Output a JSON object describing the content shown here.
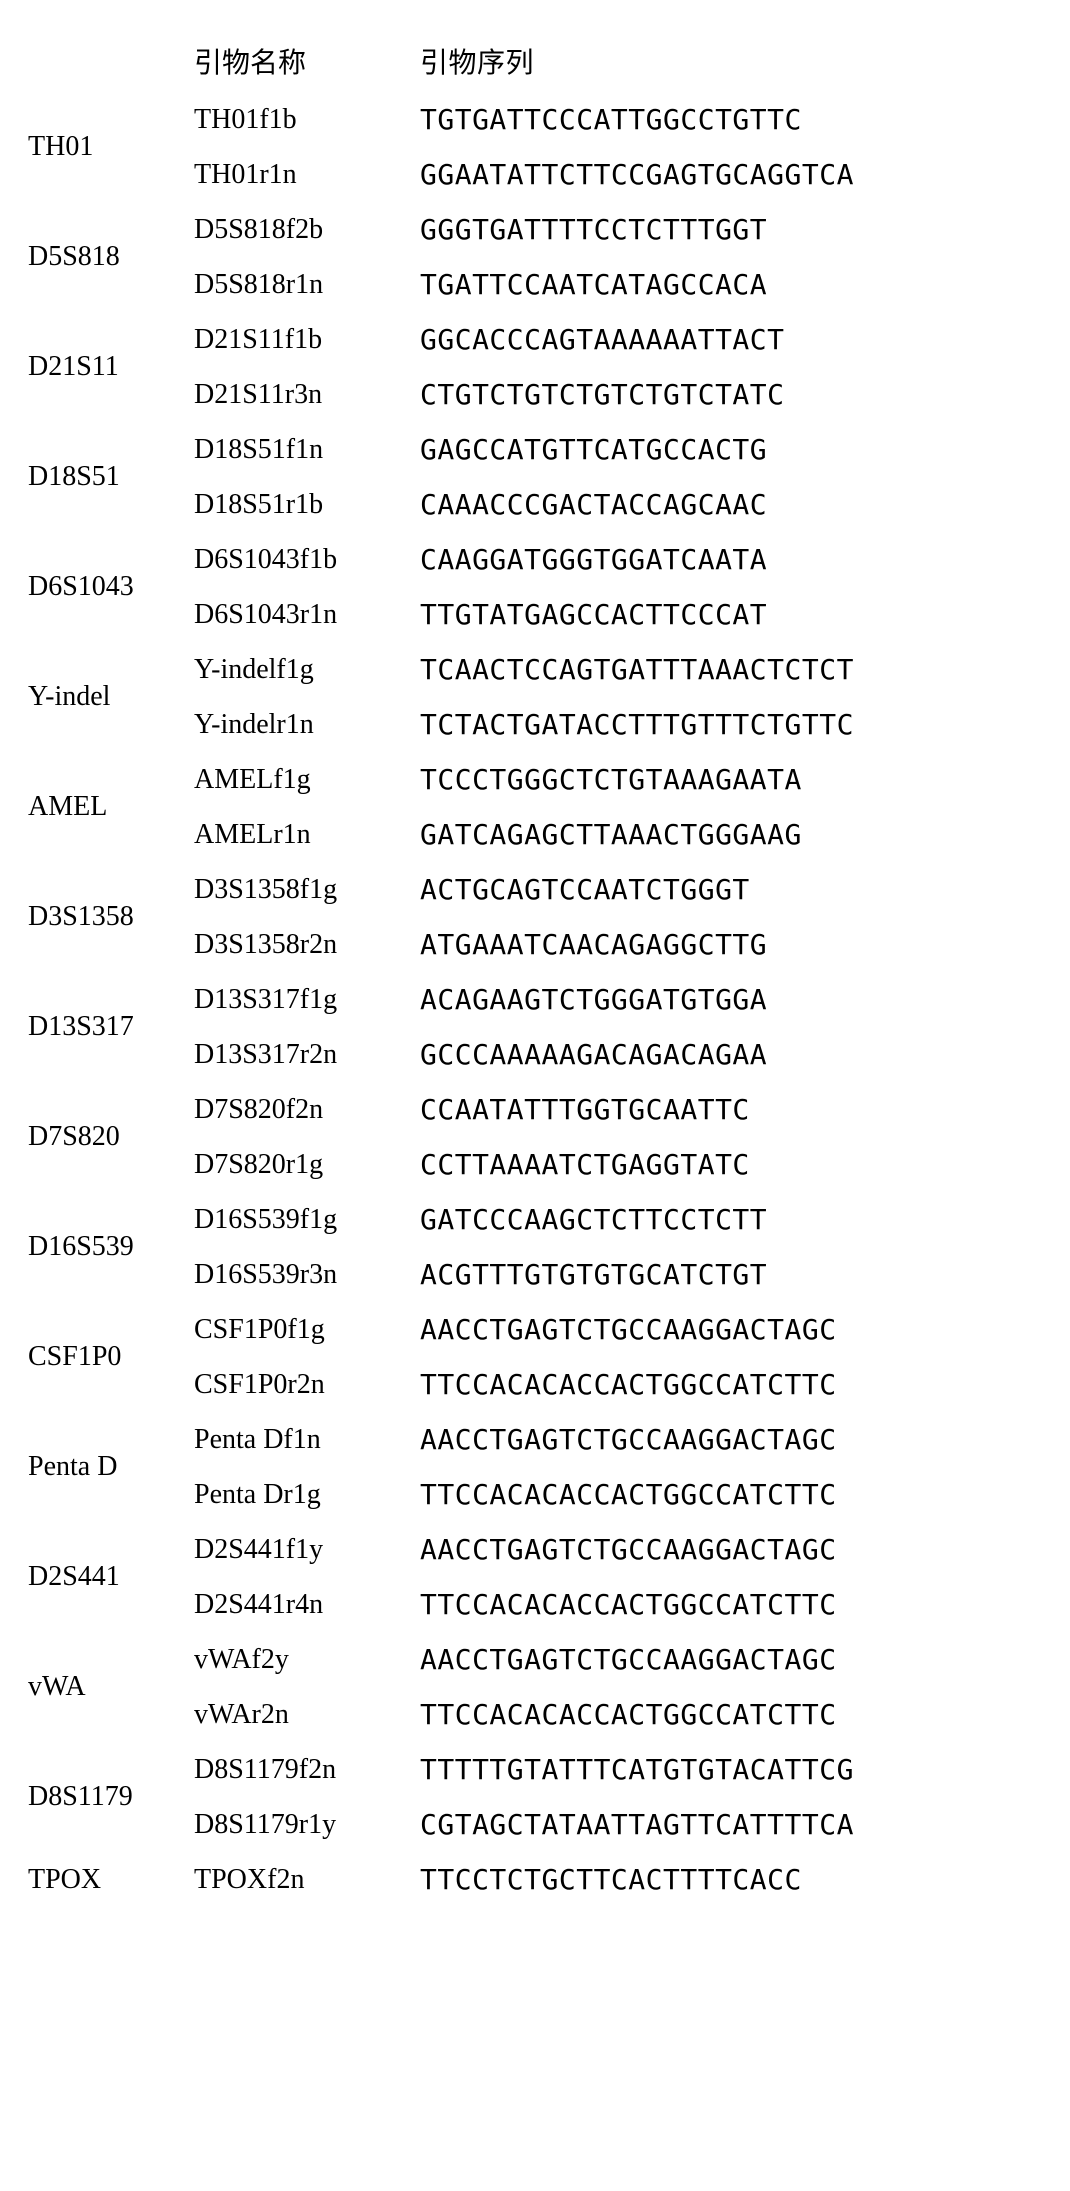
{
  "headers": {
    "locus": "",
    "primer_name": "引物名称",
    "primer_seq": "引物序列"
  },
  "rows": [
    {
      "locus": "TH01",
      "primers": [
        {
          "name": "TH01f1b",
          "seq": "TGTGATTCCCATTGGCCTGTTC"
        },
        {
          "name": "TH01r1n",
          "seq": "GGAATATTCTTCCGAGTGCAGGTCA"
        }
      ]
    },
    {
      "locus": "D5S818",
      "primers": [
        {
          "name": "D5S818f2b",
          "seq": "GGGTGATTTTCCTCTTTGGT"
        },
        {
          "name": "D5S818r1n",
          "seq": "TGATTCCAATCATAGCCACA"
        }
      ]
    },
    {
      "locus": "D21S11",
      "primers": [
        {
          "name": "D21S11f1b",
          "seq": "GGCACCCAGTAAAAAATTACT"
        },
        {
          "name": "D21S11r3n",
          "seq": "CTGTCTGTCTGTCTGTCTATC"
        }
      ]
    },
    {
      "locus": "D18S51",
      "primers": [
        {
          "name": "D18S51f1n",
          "seq": "GAGCCATGTTCATGCCACTG"
        },
        {
          "name": "D18S51r1b",
          "seq": "CAAACCCGACTACCAGCAAC"
        }
      ]
    },
    {
      "locus": "D6S1043",
      "primers": [
        {
          "name": "D6S1043f1b",
          "seq": "CAAGGATGGGTGGATCAATA"
        },
        {
          "name": "D6S1043r1n",
          "seq": "TTGTATGAGCCACTTCCCAT"
        }
      ]
    },
    {
      "locus": "Y-indel",
      "primers": [
        {
          "name": "Y-indelf1g",
          "seq": "TCAACTCCAGTGATTTAAACTCTCT"
        },
        {
          "name": "Y-indelr1n",
          "seq": "TCTACTGATACCTTTGTTTCTGTTC"
        }
      ]
    },
    {
      "locus": "AMEL",
      "primers": [
        {
          "name": "AMELf1g",
          "seq": "TCCCTGGGCTCTGTAAAGAATA"
        },
        {
          "name": "AMELr1n",
          "seq": "GATCAGAGCTTAAACTGGGAAG"
        }
      ]
    },
    {
      "locus": "D3S1358",
      "primers": [
        {
          "name": "D3S1358f1g",
          "seq": "ACTGCAGTCCAATCTGGGT"
        },
        {
          "name": "D3S1358r2n",
          "seq": "ATGAAATCAACAGAGGCTTG"
        }
      ]
    },
    {
      "locus": "D13S317",
      "primers": [
        {
          "name": "D13S317f1g",
          "seq": "ACAGAAGTCTGGGATGTGGA"
        },
        {
          "name": "D13S317r2n",
          "seq": "GCCCAAAAAGACAGACAGAA"
        }
      ]
    },
    {
      "locus": "D7S820",
      "primers": [
        {
          "name": "D7S820f2n",
          "seq": "CCAATATTTGGTGCAATTC"
        },
        {
          "name": "D7S820r1g",
          "seq": "CCTTAAAATCTGAGGTATC"
        }
      ]
    },
    {
      "locus": "D16S539",
      "primers": [
        {
          "name": "D16S539f1g",
          "seq": "GATCCCAAGCTCTTCCTCTT"
        },
        {
          "name": "D16S539r3n",
          "seq": "ACGTTTGTGTGTGCATCTGT"
        }
      ]
    },
    {
      "locus": "CSF1P0",
      "primers": [
        {
          "name": "CSF1P0f1g",
          "seq": "AACCTGAGTCTGCCAAGGACTAGC"
        },
        {
          "name": "CSF1P0r2n",
          "seq": "TTCCACACACCACTGGCCATCTTC"
        }
      ]
    },
    {
      "locus": "Penta D",
      "primers": [
        {
          "name": "Penta Df1n",
          "seq": "AACCTGAGTCTGCCAAGGACTAGC"
        },
        {
          "name": "Penta Dr1g",
          "seq": "TTCCACACACCACTGGCCATCTTC"
        }
      ]
    },
    {
      "locus": "D2S441",
      "primers": [
        {
          "name": "D2S441f1y",
          "seq": "AACCTGAGTCTGCCAAGGACTAGC"
        },
        {
          "name": "D2S441r4n",
          "seq": "TTCCACACACCACTGGCCATCTTC"
        }
      ]
    },
    {
      "locus": "vWA",
      "primers": [
        {
          "name": "vWAf2y",
          "seq": "AACCTGAGTCTGCCAAGGACTAGC"
        },
        {
          "name": "vWAr2n",
          "seq": "TTCCACACACCACTGGCCATCTTC"
        }
      ]
    },
    {
      "locus": "D8S1179",
      "primers": [
        {
          "name": "D8S1179f2n",
          "seq": "TTTTTGTATTTCATGTGTACATTCG"
        },
        {
          "name": "D8S1179r1y",
          "seq": "CGTAGCTATAATTAGTTCATTTTCA"
        }
      ]
    },
    {
      "locus": "TPOX",
      "primers": [
        {
          "name": "TPOXf2n",
          "seq": "TTCCTCTGCTTCACTTTTCACC"
        }
      ]
    }
  ]
}
